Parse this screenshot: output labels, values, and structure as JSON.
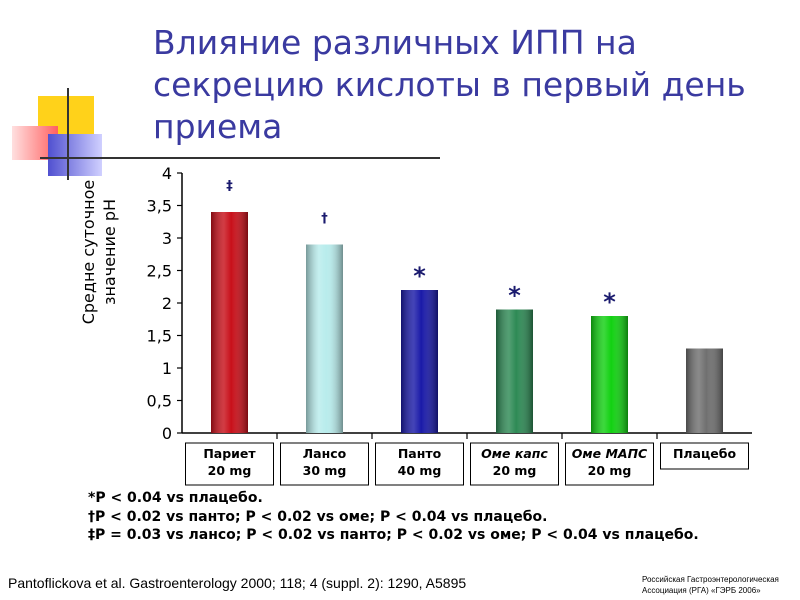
{
  "title": "Влияние различных ИПП на секрецию кислоты в первый день приема",
  "chart_data": {
    "type": "bar",
    "ylabel_line1": "Средне суточное",
    "ylabel_line2": "значение рН",
    "ylim": [
      0,
      4
    ],
    "yticks": [
      "0",
      "0,5",
      "1",
      "1,5",
      "2",
      "2,5",
      "3",
      "3,5",
      "4"
    ],
    "categories": [
      {
        "line1": "Париет",
        "line2": "20 mg"
      },
      {
        "line1": "Лансо",
        "line2": "30 mg"
      },
      {
        "line1": "Панто",
        "line2": "40 mg"
      },
      {
        "line1": "Оме капс",
        "line2": "20 mg"
      },
      {
        "line1": "Оме МАПС",
        "line2": "20 mg"
      },
      {
        "line1": "Плацебо",
        "line2": ""
      }
    ],
    "values": [
      3.4,
      2.9,
      2.2,
      1.9,
      1.8,
      1.3
    ],
    "markers": [
      "‡",
      "†",
      "*",
      "*",
      "*",
      ""
    ],
    "colors": [
      "#c8101a",
      "#b8ecec",
      "#1a1aa8",
      "#2e8a55",
      "#12d112",
      "#707070"
    ],
    "grid": false
  },
  "footnotes": [
    "*P < 0.04 vs плацебо.",
    "†P < 0.02 vs панто; P < 0.02 vs оме; P < 0.04 vs плацебо.",
    "‡P = 0.03 vs лансо; P < 0.02 vs панто; P < 0.02 vs оме; P < 0.04 vs плацебо."
  ],
  "citation": "Pantoflickova et al. Gastroenterology 2000; 118; 4 (suppl. 2): 1290, A5895",
  "org_line1": "Российская Гастроэнтерологическая",
  "org_line2": "Ассоциация (РГА) «ГЭРБ 2006»"
}
